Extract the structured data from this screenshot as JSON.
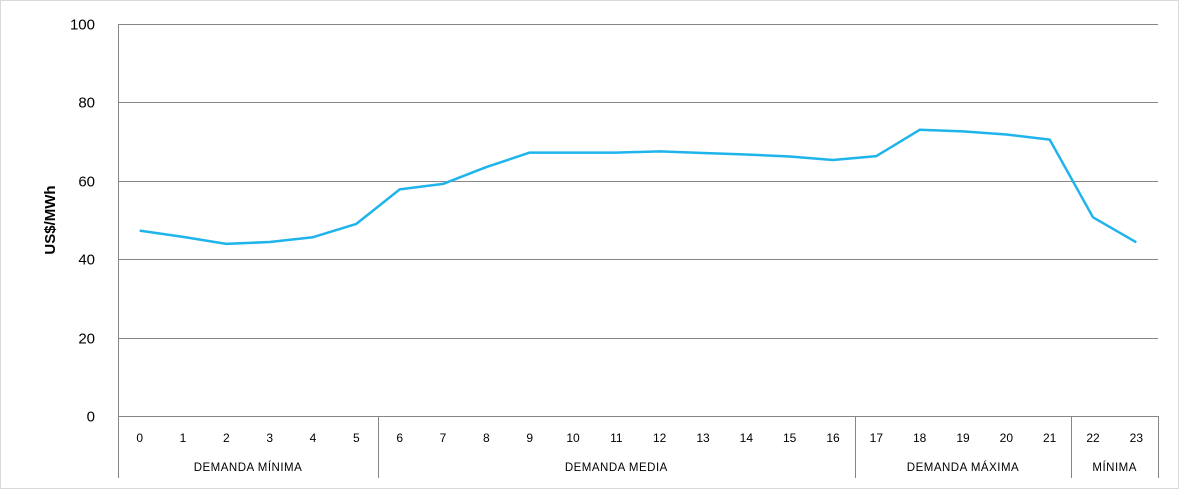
{
  "chart_data": {
    "type": "line",
    "title": "",
    "xlabel": "",
    "ylabel": "US$/MWh",
    "ylim": [
      0,
      100
    ],
    "yticks": [
      0,
      20,
      40,
      60,
      80,
      100
    ],
    "grid": true,
    "legend": "none",
    "categories": [
      "0",
      "1",
      "2",
      "3",
      "4",
      "5",
      "6",
      "7",
      "8",
      "9",
      "10",
      "11",
      "12",
      "13",
      "14",
      "15",
      "16",
      "17",
      "18",
      "19",
      "20",
      "21",
      "22",
      "23"
    ],
    "series": [
      {
        "values": [
          47.3,
          45.7,
          43.9,
          44.4,
          45.6,
          49.0,
          57.8,
          59.2,
          63.5,
          67.2,
          67.2,
          67.2,
          67.5,
          67.1,
          66.7,
          66.2,
          65.3,
          66.3,
          73.0,
          72.6,
          71.8,
          70.5,
          50.7,
          44.3
        ],
        "color": "#1fb4ec"
      }
    ],
    "groups": [
      {
        "label": "DEMANDA MÍNIMA",
        "start": 0,
        "end": 5
      },
      {
        "label": "DEMANDA MEDIA",
        "start": 6,
        "end": 16
      },
      {
        "label": "DEMANDA MÁXIMA",
        "start": 17,
        "end": 21
      },
      {
        "label": "MÍNIMA",
        "start": 22,
        "end": 23
      }
    ],
    "colors": {
      "line": "#1fb4ec",
      "grid": "#868686",
      "axis": "#868686"
    }
  }
}
